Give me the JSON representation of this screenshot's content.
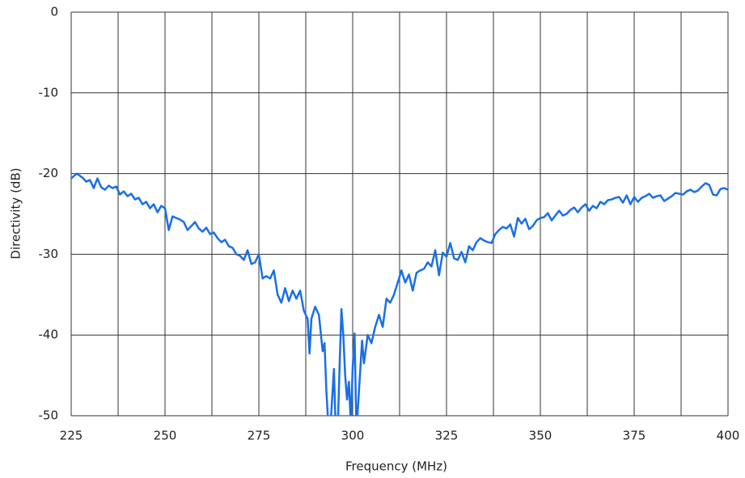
{
  "chart_data": {
    "type": "line",
    "x_label": "Frequency (MHz)",
    "y_label": "Directivity (dB)",
    "xlim": [
      225,
      400
    ],
    "ylim": [
      -50,
      0
    ],
    "xticks": [
      225,
      250,
      275,
      300,
      325,
      350,
      375,
      400
    ],
    "xminor_grid": [
      237.5,
      262.5,
      287.5,
      312.5,
      337.5,
      362.5,
      387.5
    ],
    "yticks": [
      0,
      -10,
      -20,
      -30,
      -40,
      -50
    ],
    "grid": true,
    "series": [
      {
        "color": "#1a6fe6",
        "x": [
          225,
          226.5,
          228,
          229,
          230,
          231,
          232,
          233,
          234,
          235,
          236,
          237,
          238,
          239,
          240,
          241,
          242,
          243,
          244,
          245,
          246,
          247,
          248,
          249,
          250,
          251,
          252,
          254,
          255,
          256,
          257,
          258,
          259,
          260,
          261,
          262,
          263,
          264,
          265,
          266,
          267,
          268,
          269,
          270,
          271,
          272,
          273,
          274,
          275,
          276,
          277,
          278,
          279,
          280,
          281,
          282,
          283,
          284,
          285,
          286,
          287,
          288,
          288.5,
          289,
          290,
          291,
          292,
          292.5,
          293,
          293.5,
          294,
          295,
          295.5,
          296,
          296.5,
          297,
          297.5,
          298,
          298.5,
          299,
          299.5,
          300,
          300.5,
          301,
          302,
          302.5,
          303,
          304,
          305,
          306,
          307,
          308,
          309,
          310,
          311,
          312,
          313,
          314,
          315,
          316,
          317,
          318,
          319,
          320,
          321,
          322,
          323,
          324,
          325,
          326,
          327,
          328,
          329,
          330,
          331,
          332,
          333,
          334,
          335,
          336,
          337,
          338,
          339,
          340,
          341,
          342,
          343,
          344,
          345,
          346,
          347,
          348,
          349,
          350,
          351,
          352,
          353,
          354,
          355,
          356,
          357,
          358,
          359,
          360,
          361,
          362,
          363,
          364,
          365,
          366,
          367,
          368,
          369,
          370,
          371,
          372,
          373,
          374,
          375,
          376,
          377,
          378,
          379,
          380,
          381,
          382,
          383,
          384,
          385,
          386,
          387,
          388,
          389,
          390,
          391,
          392,
          393,
          394,
          395,
          396,
          397,
          398,
          399,
          400
        ],
        "values": [
          -20.6,
          -20,
          -20.5,
          -21,
          -20.8,
          -21.8,
          -20.6,
          -21.7,
          -22,
          -21.5,
          -21.8,
          -21.6,
          -22.6,
          -22.2,
          -22.8,
          -22.5,
          -23.2,
          -23,
          -23.8,
          -23.5,
          -24.3,
          -23.8,
          -24.8,
          -24,
          -24.3,
          -27,
          -25.3,
          -25.7,
          -26,
          -27,
          -26.5,
          -26,
          -26.8,
          -27.2,
          -26.7,
          -27.5,
          -27.3,
          -28,
          -28.5,
          -28.2,
          -29,
          -29.2,
          -30,
          -30.2,
          -30.7,
          -29.5,
          -31.2,
          -31,
          -30,
          -33,
          -32.7,
          -33,
          -32,
          -35,
          -36,
          -34.2,
          -35.8,
          -34.5,
          -35.5,
          -34.5,
          -37,
          -38,
          -42.3,
          -38,
          -36.5,
          -37.5,
          -42,
          -41,
          -47,
          -51,
          -52,
          -44.2,
          -52,
          -52,
          -44,
          -36.8,
          -40,
          -45,
          -48,
          -45.8,
          -51,
          -44,
          -39.8,
          -52,
          -44.5,
          -40.7,
          -43.5,
          -40,
          -41,
          -39,
          -37.5,
          -39,
          -35.5,
          -36,
          -35,
          -33.5,
          -32,
          -33.5,
          -32.5,
          -34.5,
          -32.3,
          -32,
          -31.8,
          -31,
          -31.5,
          -29.5,
          -32.6,
          -29.8,
          -30.3,
          -28.6,
          -30.5,
          -30.7,
          -29.7,
          -31,
          -29,
          -29.5,
          -28.5,
          -28,
          -28.3,
          -28.5,
          -28.6,
          -27.5,
          -27,
          -26.6,
          -26.8,
          -26.3,
          -27.8,
          -25.5,
          -26.2,
          -25.6,
          -26.9,
          -26.5,
          -25.8,
          -25.5,
          -25.4,
          -24.9,
          -25.8,
          -25.2,
          -24.6,
          -25.2,
          -25,
          -24.5,
          -24.2,
          -24.8,
          -24.2,
          -23.8,
          -24.6,
          -24,
          -24.3,
          -23.5,
          -23.8,
          -23.3,
          -23.2,
          -23,
          -22.9,
          -23.6,
          -22.7,
          -23.8,
          -22.9,
          -23.5,
          -23,
          -22.8,
          -22.5,
          -23,
          -22.8,
          -22.7,
          -23.4,
          -23.1,
          -22.8,
          -22.4,
          -22.5,
          -22.6,
          -22.2,
          -22,
          -22.3,
          -22.1,
          -21.6,
          -21.2,
          -21.4,
          -22.6,
          -22.7,
          -21.9,
          -21.8,
          -22
        ]
      }
    ]
  }
}
